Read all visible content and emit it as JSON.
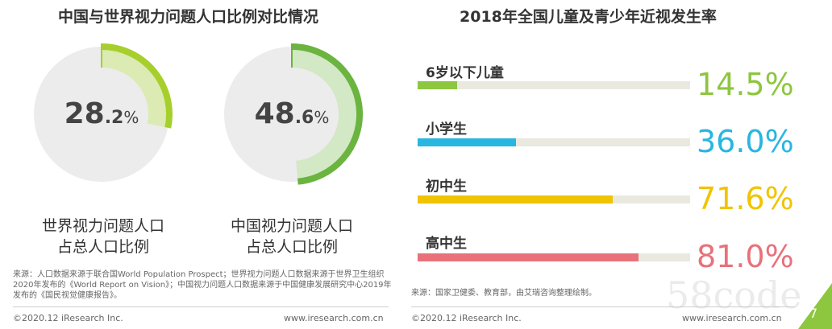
{
  "left": {
    "title": "中国与世界视力问题人口比例对比情况",
    "gauges": [
      {
        "int": "28",
        "dec": ".2",
        "pct": "%",
        "value": 28.2,
        "caption_line1": "世界视力问题人口",
        "caption_line2": "占总人口比例",
        "color_dark": "#a6cf2c",
        "color_light": "#dceab4"
      },
      {
        "int": "48",
        "dec": ".6",
        "pct": "%",
        "value": 48.6,
        "caption_line1": "中国视力问题人口",
        "caption_line2": "占总人口比例",
        "color_dark": "#6ab43f",
        "color_light": "#d3e8c5"
      }
    ],
    "source": "来源：人口数据来源于联合国World Population Prospect；世界视力问题人口数据来源于世界卫生组织2020年发布的《World Report on Vision》；中国视力问题人口数据来源于中国健康发展研究中心2019年发布的《国民视觉健康报告》。",
    "copyright": "©2020.12 iResearch Inc.",
    "website": "www.iresearch.com.cn"
  },
  "right": {
    "title": "2018年全国儿童及青少年近视发生率",
    "source": "来源：国家卫健委、教育部，由艾瑞咨询整理绘制。",
    "copyright": "©2020.12 iResearch Inc.",
    "website": "www.iresearch.com.cn"
  },
  "chart_data": [
    {
      "type": "pie",
      "title": "中国与世界视力问题人口比例对比情况",
      "series": [
        {
          "name": "世界视力问题人口占总人口比例",
          "values": [
            28.2
          ]
        },
        {
          "name": "中国视力问题人口占总人口比例",
          "values": [
            48.6
          ]
        }
      ],
      "unit": "%"
    },
    {
      "type": "bar",
      "title": "2018年全国儿童及青少年近视发生率",
      "categories": [
        "6岁以下儿童",
        "小学生",
        "初中生",
        "高中生"
      ],
      "values": [
        14.5,
        36.0,
        71.6,
        81.0
      ],
      "labels": [
        "14.5%",
        "36.0%",
        "71.6%",
        "81.0%"
      ],
      "colors": [
        "#8dc63f",
        "#29b6e0",
        "#f0c400",
        "#e8717a"
      ],
      "xlim": [
        0,
        100
      ],
      "orientation": "horizontal"
    }
  ],
  "watermark": "58code",
  "page_number": "7",
  "corner_color": "#8dc63f"
}
